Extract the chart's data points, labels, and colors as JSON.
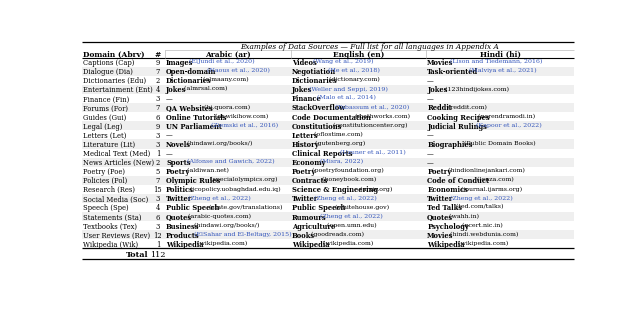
{
  "title": "Examples of Data Sources — Full list for all languages in Appendix A",
  "col_headers": [
    "Domain (Abrv)",
    "#",
    "Arabic (ar)",
    "English (en)",
    "Hindi (hi)"
  ],
  "rows": [
    [
      "Captions (Cap)",
      "9",
      "Images",
      "ElJundi et al., 2020",
      "",
      "Videos",
      "Wang et al., 2019",
      "",
      "Movies",
      "Lison and Tiedemann, 2016",
      ""
    ],
    [
      "Dialogue (Dia)",
      "7",
      "Open-domain",
      "Naous et al., 2020",
      "",
      "Negotiation",
      "He et al., 2018",
      "",
      "Task-oriented",
      "Malviya et al., 2021",
      ""
    ],
    [
      "Dictionaries (Edu)",
      "2",
      "Dictionaries",
      "",
      "(almaany.com)",
      "Dictionaries",
      "",
      "(dictionary.com)",
      "",
      "",
      "—"
    ],
    [
      "Entertainment (Ent)",
      "4",
      "Jokes",
      "",
      "(almrsal.com)",
      "Jokes",
      "Weller and Seppi, 2019",
      "",
      "Jokes",
      "",
      "(123hindijokes.com)"
    ],
    [
      "Finance (Fin)",
      "3",
      "",
      "",
      "—",
      "Finance",
      "Malo et al., 2014",
      "",
      "",
      "",
      "—"
    ],
    [
      "Forums (For)",
      "7",
      "QA Websites",
      "",
      "(hi.quora.com)",
      "StackOverflow",
      "Tabassum et al., 2020",
      "",
      "Reddit",
      "",
      "(reddit.com)"
    ],
    [
      "Guides (Gui)",
      "6",
      "Online Tutorials",
      "",
      "(ar.wikihow.com)",
      "Code Documentation",
      "",
      "(mathworks.com)",
      "Cooking Recipes",
      "",
      "(narendramodi.in)"
    ],
    [
      "Legal (Leg)",
      "9",
      "UN Parliament",
      "Ziemski et al., 2016",
      "",
      "Constitutions",
      "",
      "(constitutioncenter.org)",
      "Judicial Rulings",
      "Kapoor et al., 2022",
      ""
    ],
    [
      "Letters (Let)",
      "3",
      "",
      "",
      "—",
      "Letters",
      "",
      "(oflostime.com)",
      "",
      "",
      "—"
    ],
    [
      "Literature (Lit)",
      "3",
      "Novels",
      "",
      "(hindawi.org/books/)",
      "History",
      "",
      "(gutenberg.org)",
      "Biographies",
      "",
      "(Public Domain Books)"
    ],
    [
      "Medical Text (Med)",
      "1",
      "",
      "",
      "—",
      "Clinical Reports",
      "Uzuner et al., 2011",
      "",
      "",
      "",
      "—"
    ],
    [
      "News Articles (New)",
      "2",
      "Sports",
      "Alfonse and Gawich, 2022",
      "",
      "Economy",
      "Misra, 2022",
      "",
      "",
      "",
      "—"
    ],
    [
      "Poetry (Poe)",
      "5",
      "Poetry",
      "",
      "(aldiwan.net)",
      "Poetry",
      "",
      "(poetryfoundation.org)",
      "Poetry",
      "",
      "(hindionlinejankari.com)"
    ],
    [
      "Policies (Pol)",
      "7",
      "Olympic Rules",
      "",
      "(specialolympics.org)",
      "Contracts",
      "",
      "(honeybook.com)",
      "Code of Conduct",
      "",
      "(lonza.com)"
    ],
    [
      "Research (Res)",
      "15",
      "Politics",
      "",
      "(jcopolicy.uobaghdad.edu.iq)",
      "Science & Engineering",
      "",
      "(arxiv.org)",
      "Economics",
      "",
      "(journal.ijarms.org)"
    ],
    [
      "Social Media (Soc)",
      "3",
      "Twitter",
      "Zheng et al., 2022",
      "",
      "Twitter",
      "Zheng et al., 2022",
      "",
      "Twitter",
      "Zheng et al., 2022",
      ""
    ],
    [
      "Speech (Spe)",
      "4",
      "Public Speech",
      "",
      "(state.gov/translations)",
      "Public Speech",
      "",
      "(whitehouse.gov)",
      "Ted Talks",
      "",
      "(ted.com/talks)"
    ],
    [
      "Statements (Sta)",
      "6",
      "Quotes",
      "",
      "(arabic-quotes.com)",
      "Rumours",
      "Zheng et al., 2022",
      "",
      "Quotes",
      "",
      "(wahh.in)"
    ],
    [
      "Textbooks (Tex)",
      "3",
      "Business",
      "",
      "(hindawi.org/books/)",
      "Agriculture",
      "",
      "(open.umn.edu)",
      "Psychology",
      "",
      "(ncert.nic.in)"
    ],
    [
      "User Reviews (Rev)",
      "12",
      "Products",
      "ElSahar and El-Beltagy, 2015",
      "",
      "Books",
      "",
      "(goodreads.com)",
      "Movies",
      "",
      "(hindi.webdunia.com)"
    ],
    [
      "Wikipedia (Wik)",
      "1",
      "Wikipedia",
      "",
      "(wikipedia.com)",
      "Wikipedia",
      "",
      "(wikipedia.com)",
      "Wikipedia",
      "",
      "(wikipedia.com)"
    ]
  ],
  "total_label": "Total",
  "total_num": "112",
  "bg_white": "#ffffff",
  "bg_gray": "#efefef",
  "text_black": "#000000",
  "text_blue": "#3355bb",
  "border_dark": "#000000",
  "border_light": "#aaaaaa"
}
